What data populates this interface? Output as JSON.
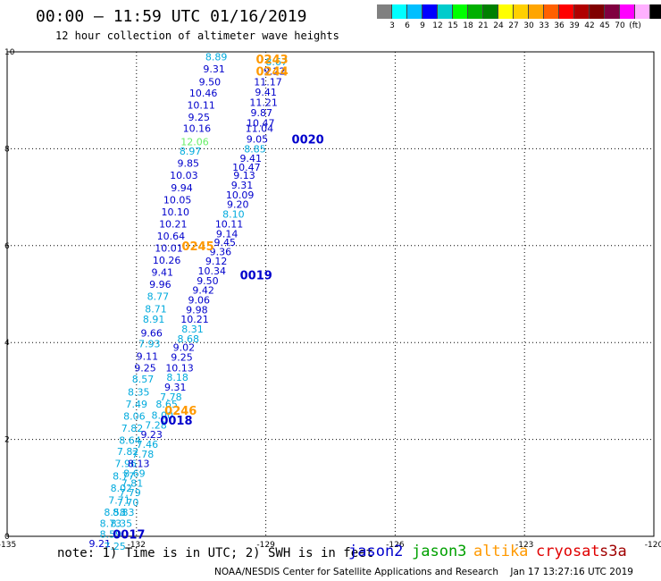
{
  "title": "00:00 – 11:59 UTC 01/16/2019",
  "subtitle": "12 hour collection of altimeter wave heights",
  "scale": {
    "colors": [
      "#808080",
      "#00ffff",
      "#00bfff",
      "#0000ff",
      "#00cccc",
      "#00ff00",
      "#00b000",
      "#008000",
      "#ffff00",
      "#ffd000",
      "#ffa500",
      "#ff6000",
      "#ff0000",
      "#b00000",
      "#800000",
      "#800040",
      "#ff00ff",
      "#ffb0ff",
      "#000000"
    ],
    "labels": [
      "3",
      "6",
      "9",
      "12",
      "15",
      "18",
      "21",
      "24",
      "27",
      "30",
      "33",
      "36",
      "39",
      "42",
      "45",
      "70",
      "(ft)"
    ]
  },
  "axes": {
    "x_ticks": [
      "-135",
      "-132",
      "-129",
      "-126",
      "-123",
      "-120"
    ],
    "y_ticks": [
      "0",
      "2",
      "4",
      "6",
      "8",
      "10"
    ]
  },
  "note": "note: 1) Time is in UTC; 2) SWH is in feet",
  "legend": [
    {
      "name": "jason2",
      "color": "#0000cc"
    },
    {
      "name": "jason3",
      "color": "#00a000"
    },
    {
      "name": "altika",
      "color": "#ff9900"
    },
    {
      "name": "cryosat",
      "color": "#e00000"
    },
    {
      "name": "s3a",
      "color": "#a00000"
    }
  ],
  "footer": "NOAA/NESDIS Center for Satellite Applications and Research    Jan 17 13:27:16 UTC 2019",
  "time_labels": [
    {
      "text": "0243",
      "x": -129.23,
      "y": 9.85,
      "color": "#ff9900"
    },
    {
      "text": "0244",
      "x": -129.23,
      "y": 9.6,
      "color": "#ff9900"
    },
    {
      "text": "0020",
      "x": -128.4,
      "y": 8.2,
      "color": "#0000cc"
    },
    {
      "text": "0019",
      "x": -129.6,
      "y": 5.4,
      "color": "#0000cc"
    },
    {
      "text": "0245",
      "x": -130.95,
      "y": 6.0,
      "color": "#ff9900"
    },
    {
      "text": "0246",
      "x": -131.35,
      "y": 2.6,
      "color": "#ff9900"
    },
    {
      "text": "0018",
      "x": -131.45,
      "y": 2.4,
      "color": "#0000cc"
    },
    {
      "text": "0017",
      "x": -132.55,
      "y": 0.05,
      "color": "#0000cc"
    }
  ],
  "wave_heights": [
    {
      "v": "8.89",
      "x": -130.15,
      "y": 9.9,
      "c": "#00aadd"
    },
    {
      "v": "8.67",
      "x": -128.75,
      "y": 9.8,
      "c": "#00aadd"
    },
    {
      "v": "9.31",
      "x": -130.2,
      "y": 9.65,
      "c": "#0000cc"
    },
    {
      "v": "9.22",
      "x": -128.8,
      "y": 9.6,
      "c": "#0000cc"
    },
    {
      "v": "9.50",
      "x": -130.3,
      "y": 9.38,
      "c": "#0000cc"
    },
    {
      "v": "11.17",
      "x": -128.95,
      "y": 9.38,
      "c": "#0000cc"
    },
    {
      "v": "10.46",
      "x": -130.45,
      "y": 9.15,
      "c": "#0000cc"
    },
    {
      "v": "9.41",
      "x": -129.0,
      "y": 9.17,
      "c": "#0000cc"
    },
    {
      "v": "11.21",
      "x": -129.05,
      "y": 8.96,
      "c": "#0000cc"
    },
    {
      "v": "10.11",
      "x": -130.5,
      "y": 8.9,
      "c": "#0000cc"
    },
    {
      "v": "9.87",
      "x": -129.1,
      "y": 8.75,
      "c": "#0000cc"
    },
    {
      "v": "9.25",
      "x": -130.55,
      "y": 8.65,
      "c": "#0000cc"
    },
    {
      "v": "10.47",
      "x": -129.12,
      "y": 8.53,
      "c": "#0000cc"
    },
    {
      "v": "10.16",
      "x": -130.6,
      "y": 8.42,
      "c": "#0000cc"
    },
    {
      "v": "11.04",
      "x": -129.15,
      "y": 8.42,
      "c": "#0000cc"
    },
    {
      "v": "9.05",
      "x": -129.2,
      "y": 8.2,
      "c": "#0000cc"
    },
    {
      "v": "12.06",
      "x": -130.65,
      "y": 8.15,
      "c": "#66ee66"
    },
    {
      "v": "8.85",
      "x": -129.25,
      "y": 8.0,
      "c": "#00aadd"
    },
    {
      "v": "8.97",
      "x": -130.75,
      "y": 7.95,
      "c": "#00aadd"
    },
    {
      "v": "9.41",
      "x": -129.35,
      "y": 7.8,
      "c": "#0000cc"
    },
    {
      "v": "9.85",
      "x": -130.8,
      "y": 7.7,
      "c": "#0000cc"
    },
    {
      "v": "10.47",
      "x": -129.45,
      "y": 7.62,
      "c": "#0000cc"
    },
    {
      "v": "10.03",
      "x": -130.9,
      "y": 7.45,
      "c": "#0000cc"
    },
    {
      "v": "9.13",
      "x": -129.5,
      "y": 7.45,
      "c": "#0000cc"
    },
    {
      "v": "9.31",
      "x": -129.55,
      "y": 7.25,
      "c": "#0000cc"
    },
    {
      "v": "9.94",
      "x": -130.95,
      "y": 7.2,
      "c": "#0000cc"
    },
    {
      "v": "10.09",
      "x": -129.6,
      "y": 7.05,
      "c": "#0000cc"
    },
    {
      "v": "10.05",
      "x": -131.05,
      "y": 6.95,
      "c": "#0000cc"
    },
    {
      "v": "9.20",
      "x": -129.65,
      "y": 6.85,
      "c": "#0000cc"
    },
    {
      "v": "10.10",
      "x": -131.1,
      "y": 6.7,
      "c": "#0000cc"
    },
    {
      "v": "8.10",
      "x": -129.75,
      "y": 6.65,
      "c": "#00aadd"
    },
    {
      "v": "10.21",
      "x": -131.15,
      "y": 6.45,
      "c": "#0000cc"
    },
    {
      "v": "10.11",
      "x": -129.85,
      "y": 6.45,
      "c": "#0000cc"
    },
    {
      "v": "9.14",
      "x": -129.9,
      "y": 6.25,
      "c": "#0000cc"
    },
    {
      "v": "10.64",
      "x": -131.2,
      "y": 6.2,
      "c": "#0000cc"
    },
    {
      "v": "9.45",
      "x": -129.95,
      "y": 6.07,
      "c": "#0000cc"
    },
    {
      "v": "10.01",
      "x": -131.25,
      "y": 5.95,
      "c": "#0000cc"
    },
    {
      "v": "9.36",
      "x": -130.05,
      "y": 5.88,
      "c": "#0000cc"
    },
    {
      "v": "10.26",
      "x": -131.3,
      "y": 5.7,
      "c": "#0000cc"
    },
    {
      "v": "9.12",
      "x": -130.15,
      "y": 5.68,
      "c": "#0000cc"
    },
    {
      "v": "10.34",
      "x": -130.25,
      "y": 5.48,
      "c": "#0000cc"
    },
    {
      "v": "9.41",
      "x": -131.4,
      "y": 5.45,
      "c": "#0000cc"
    },
    {
      "v": "9.50",
      "x": -130.35,
      "y": 5.28,
      "c": "#0000cc"
    },
    {
      "v": "9.96",
      "x": -131.45,
      "y": 5.2,
      "c": "#0000cc"
    },
    {
      "v": "9.42",
      "x": -130.45,
      "y": 5.08,
      "c": "#0000cc"
    },
    {
      "v": "8.77",
      "x": -131.5,
      "y": 4.95,
      "c": "#00aadd"
    },
    {
      "v": "9.06",
      "x": -130.55,
      "y": 4.88,
      "c": "#0000cc"
    },
    {
      "v": "8.71",
      "x": -131.55,
      "y": 4.7,
      "c": "#00aadd"
    },
    {
      "v": "9.98",
      "x": -130.6,
      "y": 4.68,
      "c": "#0000cc"
    },
    {
      "v": "8.91",
      "x": -131.6,
      "y": 4.48,
      "c": "#00aadd"
    },
    {
      "v": "10.21",
      "x": -130.65,
      "y": 4.48,
      "c": "#0000cc"
    },
    {
      "v": "8.31",
      "x": -130.7,
      "y": 4.28,
      "c": "#00aadd"
    },
    {
      "v": "9.66",
      "x": -131.65,
      "y": 4.2,
      "c": "#0000cc"
    },
    {
      "v": "8.68",
      "x": -130.8,
      "y": 4.08,
      "c": "#00aadd"
    },
    {
      "v": "7.93",
      "x": -131.7,
      "y": 3.98,
      "c": "#00aadd"
    },
    {
      "v": "9.02",
      "x": -130.9,
      "y": 3.9,
      "c": "#0000cc"
    },
    {
      "v": "9.11",
      "x": -131.75,
      "y": 3.72,
      "c": "#0000cc"
    },
    {
      "v": "9.25",
      "x": -130.95,
      "y": 3.7,
      "c": "#0000cc"
    },
    {
      "v": "9.25",
      "x": -131.8,
      "y": 3.48,
      "c": "#0000cc"
    },
    {
      "v": "10.13",
      "x": -131.0,
      "y": 3.48,
      "c": "#0000cc"
    },
    {
      "v": "8.18",
      "x": -131.05,
      "y": 3.28,
      "c": "#00aadd"
    },
    {
      "v": "8.57",
      "x": -131.85,
      "y": 3.25,
      "c": "#00aadd"
    },
    {
      "v": "9.31",
      "x": -131.1,
      "y": 3.08,
      "c": "#0000cc"
    },
    {
      "v": "8.35",
      "x": -131.95,
      "y": 2.98,
      "c": "#00aadd"
    },
    {
      "v": "7.78",
      "x": -131.2,
      "y": 2.88,
      "c": "#00aadd"
    },
    {
      "v": "7.49",
      "x": -132.0,
      "y": 2.73,
      "c": "#00aadd"
    },
    {
      "v": "8.65",
      "x": -131.3,
      "y": 2.73,
      "c": "#00aadd"
    },
    {
      "v": "8.06",
      "x": -132.05,
      "y": 2.48,
      "c": "#00aadd"
    },
    {
      "v": "8.00",
      "x": -131.4,
      "y": 2.5,
      "c": "#00aadd"
    },
    {
      "v": "7.28",
      "x": -131.55,
      "y": 2.3,
      "c": "#00aadd"
    },
    {
      "v": "7.82",
      "x": -132.1,
      "y": 2.23,
      "c": "#00aadd"
    },
    {
      "v": "9.23",
      "x": -131.65,
      "y": 2.1,
      "c": "#0000cc"
    },
    {
      "v": "8.64",
      "x": -132.15,
      "y": 1.98,
      "c": "#00aadd"
    },
    {
      "v": "7.46",
      "x": -131.75,
      "y": 1.9,
      "c": "#00aadd"
    },
    {
      "v": "7.82",
      "x": -132.2,
      "y": 1.75,
      "c": "#00aadd"
    },
    {
      "v": "7.78",
      "x": -131.85,
      "y": 1.7,
      "c": "#00aadd"
    },
    {
      "v": "7.96",
      "x": -132.25,
      "y": 1.5,
      "c": "#00aadd"
    },
    {
      "v": "8.13",
      "x": -131.95,
      "y": 1.5,
      "c": "#0000cc"
    },
    {
      "v": "8.69",
      "x": -132.05,
      "y": 1.3,
      "c": "#00aadd"
    },
    {
      "v": "8.77",
      "x": -132.3,
      "y": 1.25,
      "c": "#00aadd"
    },
    {
      "v": "7.81",
      "x": -132.1,
      "y": 1.1,
      "c": "#00aadd"
    },
    {
      "v": "8.02",
      "x": -132.35,
      "y": 1.0,
      "c": "#00aadd"
    },
    {
      "v": "7.79",
      "x": -132.15,
      "y": 0.9,
      "c": "#00aadd"
    },
    {
      "v": "7.71",
      "x": -132.4,
      "y": 0.75,
      "c": "#00aadd"
    },
    {
      "v": "7.70",
      "x": -132.2,
      "y": 0.7,
      "c": "#00aadd"
    },
    {
      "v": "8.58",
      "x": -132.5,
      "y": 0.5,
      "c": "#00aadd"
    },
    {
      "v": "8.83",
      "x": -132.3,
      "y": 0.5,
      "c": "#00aadd"
    },
    {
      "v": "8.73",
      "x": -132.6,
      "y": 0.27,
      "c": "#00aadd"
    },
    {
      "v": "8.35",
      "x": -132.35,
      "y": 0.27,
      "c": "#00aadd"
    },
    {
      "v": "8.59",
      "x": -132.6,
      "y": 0.05,
      "c": "#00aadd"
    },
    {
      "v": "9.21",
      "x": -132.85,
      "y": -0.15,
      "c": "#0000cc"
    },
    {
      "v": "7.25",
      "x": -132.5,
      "y": -0.2,
      "c": "#00aadd"
    }
  ]
}
